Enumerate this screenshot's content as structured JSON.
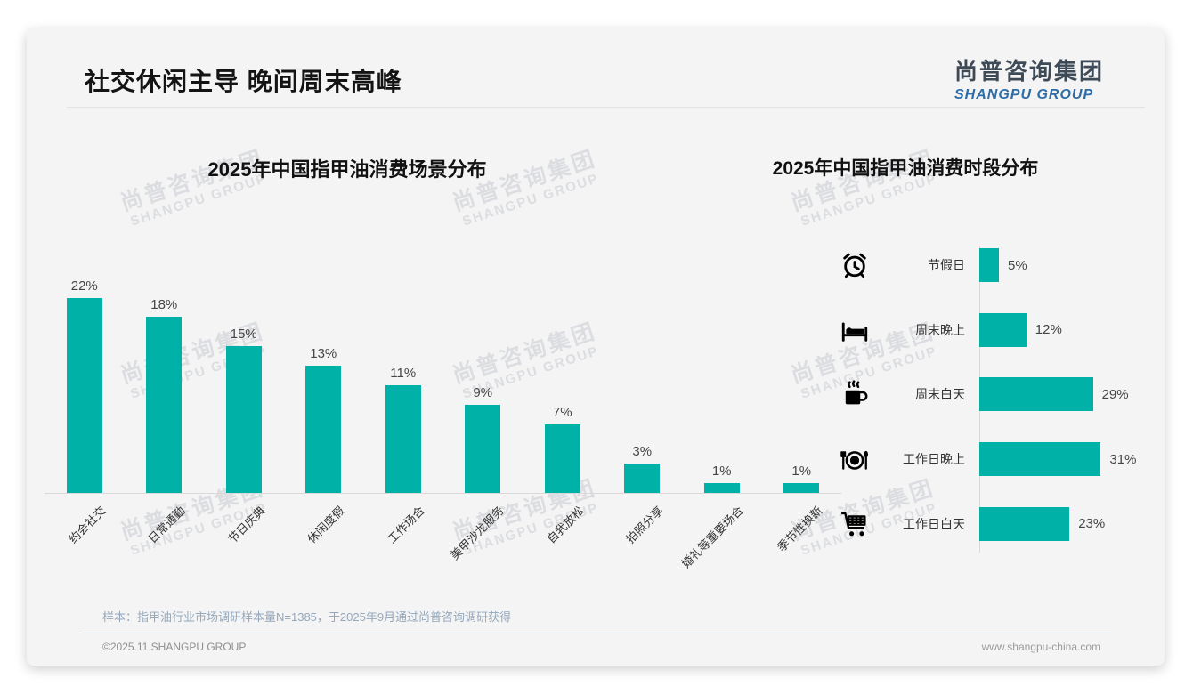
{
  "header": {
    "title": "社交休闲主导 晚间周末高峰"
  },
  "logo": {
    "cn": "尚普咨询集团",
    "en": "SHANGPU GROUP"
  },
  "watermark": {
    "line1": "尚普咨询集团",
    "line2": "SHANGPU GROUP"
  },
  "colors": {
    "bar": "#00b1a8",
    "logo_cn": "#3e4a56",
    "logo_en": "#2e6ca6",
    "footnote": "#94a7ba"
  },
  "chart_data": [
    {
      "type": "bar",
      "orientation": "vertical",
      "title": "2025年中国指甲油消费场景分布",
      "categories": [
        "约会社交",
        "日常通勤",
        "节日庆典",
        "休闲度假",
        "工作场合",
        "美甲沙龙服务",
        "自我放松",
        "拍照分享",
        "婚礼等重要场合",
        "季节性换新"
      ],
      "values": [
        22,
        18,
        15,
        13,
        11,
        9,
        7,
        3,
        1,
        1
      ],
      "unit": "%",
      "ylim": [
        0,
        24
      ],
      "grid": false,
      "value_label_position": "top",
      "category_label_rotation": 45
    },
    {
      "type": "bar",
      "orientation": "horizontal",
      "title": "2025年中国指甲油消费时段分布",
      "categories": [
        "节假日",
        "周末晚上",
        "周末白天",
        "工作日晚上",
        "工作日白天"
      ],
      "values": [
        5,
        12,
        29,
        31,
        23
      ],
      "icons": [
        "alarm-clock",
        "bed",
        "coffee-cup",
        "dining-plate",
        "shopping-cart"
      ],
      "unit": "%",
      "xlim": [
        0,
        35
      ],
      "grid": false,
      "value_label_position": "right"
    }
  ],
  "footnote": "样本：指甲油行业市场调研样本量N=1385，于2025年9月通过尚普咨询调研获得",
  "footer": {
    "left": "©2025.11 SHANGPU GROUP",
    "right": "www.shangpu-china.com"
  }
}
